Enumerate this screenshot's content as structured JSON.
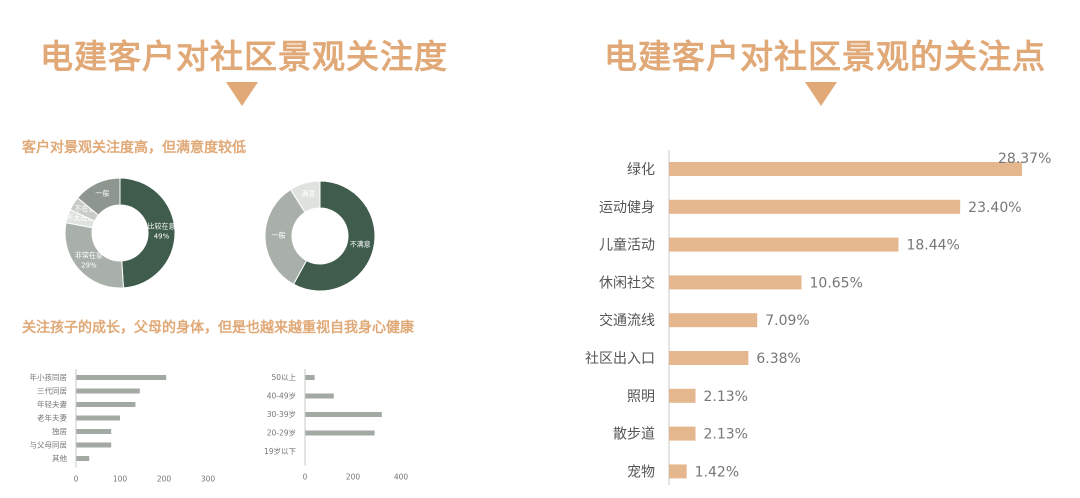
{
  "left": {
    "title": "电建客户对社区景观关注度",
    "subhead_1": "客户对景观关注度高，但满意度较低",
    "subhead_2": "关注孩子的成长，父母的身体，但是也越来越重视自我身心健康"
  },
  "right": {
    "title": "电建客户对社区景观的关注点"
  },
  "colors": {
    "accent": "#e0a977",
    "bar": "#e5b78f",
    "grey_bar": "#a3a9a3",
    "dark_green": "#3f5c4c",
    "mid_grey": "#a9b0aa",
    "light_grey": "#d6dbd6"
  },
  "chart_data": [
    {
      "type": "pie",
      "donut": true,
      "slices": [
        {
          "label": "比较在意",
          "value": 49,
          "value_text": "49%",
          "color": "#3f5c4c"
        },
        {
          "label": "非常在意",
          "value": 29,
          "value_text": "29%",
          "color": "#a9b0aa"
        },
        {
          "label": "不太在意",
          "value": 4,
          "value_text": "",
          "color": "#dfe3df"
        },
        {
          "label": "不在意",
          "value": 4,
          "value_text": "",
          "color": "#c7ccc7"
        },
        {
          "label": "一般",
          "value": 14,
          "value_text": "",
          "color": "#8e978f"
        }
      ]
    },
    {
      "type": "pie",
      "donut": true,
      "slices": [
        {
          "label": "不满意",
          "value": 58,
          "value_text": "",
          "color": "#3f5c4c"
        },
        {
          "label": "一般",
          "value": 33,
          "value_text": "",
          "color": "#a9b0aa"
        },
        {
          "label": "满意",
          "value": 9,
          "value_text": "",
          "color": "#dfe3df"
        }
      ]
    },
    {
      "type": "bar",
      "orientation": "horizontal",
      "categories": [
        "年小孩同居",
        "三代同居",
        "年轻夫妻",
        "老年夫妻",
        "独居",
        "与父母同居",
        "其他"
      ],
      "values": [
        205,
        145,
        135,
        100,
        80,
        80,
        30
      ],
      "xlim": [
        0,
        300
      ],
      "xticks": [
        "0",
        "100",
        "200",
        "300"
      ]
    },
    {
      "type": "bar",
      "orientation": "horizontal",
      "categories": [
        "50以上",
        "40-49岁",
        "30-39岁",
        "20-29岁",
        "19岁以下"
      ],
      "values": [
        40,
        120,
        320,
        290,
        0
      ],
      "xlim": [
        0,
        400
      ],
      "xticks": [
        "0",
        "200",
        "400"
      ]
    },
    {
      "type": "bar",
      "orientation": "horizontal",
      "title": "电建客户对社区景观的关注点",
      "categories": [
        "绿化",
        "运动健身",
        "儿童活动",
        "休闲社交",
        "交通流线",
        "社区出入口",
        "照明",
        "散步道",
        "宠物"
      ],
      "values": [
        28.37,
        23.4,
        18.44,
        10.65,
        7.09,
        6.38,
        2.13,
        2.13,
        1.42
      ],
      "value_labels": [
        "28.37%",
        "23.40%",
        "18.44%",
        "10.65%",
        "7.09%",
        "6.38%",
        "2.13%",
        "2.13%",
        "1.42%"
      ],
      "xlim": [
        0,
        28.37
      ]
    }
  ]
}
